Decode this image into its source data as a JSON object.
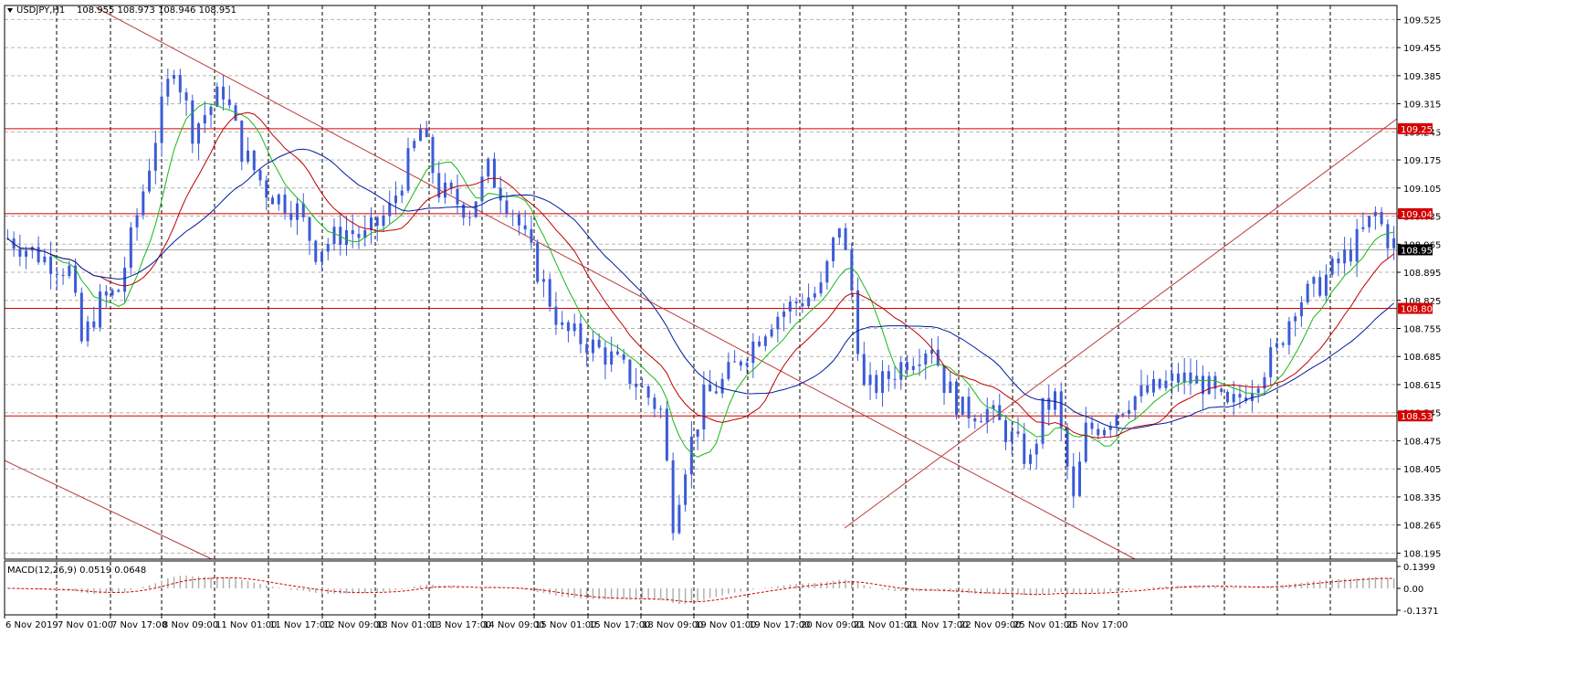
{
  "header": {
    "symbol": "USDJPY,H1",
    "ohlc": "108.955 108.973 108.946 108.951"
  },
  "macd_panel": {
    "label": "MACD(12,26,9) 0.0519 0.0648",
    "ticks": [
      "0.1399",
      "0.00",
      "-0.1371"
    ]
  },
  "colors": {
    "candle": "#3b5bd6",
    "ma_fast": "#18b818",
    "ma_mid": "#c00000",
    "ma_slow": "#001c9c",
    "hline": "#d40000",
    "trend": "#b83c3c",
    "grid": "#b4b4b4",
    "price_tag": "#000000"
  },
  "chart_data": {
    "type": "candlestick",
    "title": "USDJPY,H1",
    "ylim": [
      108.18,
      109.56
    ],
    "y_ticks": [
      "109.525",
      "109.455",
      "109.385",
      "109.315",
      "109.245",
      "109.175",
      "109.105",
      "109.035",
      "108.965",
      "108.895",
      "108.825",
      "108.755",
      "108.685",
      "108.615",
      "108.545",
      "108.475",
      "108.405",
      "108.335",
      "108.265",
      "108.195"
    ],
    "x_ticks": [
      "6 Nov 2019",
      "7 Nov 01:00",
      "7 Nov 17:00",
      "8 Nov 09:00",
      "11 Nov 01:00",
      "11 Nov 17:00",
      "12 Nov 09:00",
      "13 Nov 01:00",
      "13 Nov 17:00",
      "14 Nov 09:00",
      "15 Nov 01:00",
      "15 Nov 17:00",
      "18 Nov 09:00",
      "19 Nov 01:00",
      "19 Nov 17:00",
      "20 Nov 09:00",
      "21 Nov 01:00",
      "21 Nov 17:00",
      "22 Nov 09:00",
      "25 Nov 01:00",
      "25 Nov 17:00"
    ],
    "current_price": "108.951",
    "horizontal_levels": [
      "109.253",
      "109.041",
      "108.805",
      "108.537"
    ],
    "price_path": [
      [
        0,
        108.98
      ],
      [
        6,
        108.93
      ],
      [
        10,
        108.9
      ],
      [
        12,
        108.72
      ],
      [
        15,
        108.82
      ],
      [
        18,
        108.85
      ],
      [
        22,
        109.1
      ],
      [
        25,
        109.3
      ],
      [
        27,
        109.42
      ],
      [
        30,
        109.25
      ],
      [
        35,
        109.35
      ],
      [
        38,
        109.2
      ],
      [
        42,
        109.1
      ],
      [
        47,
        109.05
      ],
      [
        50,
        108.95
      ],
      [
        55,
        109.0
      ],
      [
        58,
        108.98
      ],
      [
        62,
        109.05
      ],
      [
        67,
        109.25
      ],
      [
        70,
        109.1
      ],
      [
        75,
        109.05
      ],
      [
        78,
        109.15
      ],
      [
        82,
        109.05
      ],
      [
        86,
        108.9
      ],
      [
        90,
        108.75
      ],
      [
        94,
        108.72
      ],
      [
        98,
        108.68
      ],
      [
        102,
        108.62
      ],
      [
        106,
        108.55
      ],
      [
        108,
        108.28
      ],
      [
        110,
        108.42
      ],
      [
        113,
        108.58
      ],
      [
        116,
        108.62
      ],
      [
        120,
        108.7
      ],
      [
        124,
        108.78
      ],
      [
        128,
        108.82
      ],
      [
        132,
        108.85
      ],
      [
        135,
        109.02
      ],
      [
        137,
        108.85
      ],
      [
        139,
        108.6
      ],
      [
        142,
        108.62
      ],
      [
        146,
        108.68
      ],
      [
        150,
        108.72
      ],
      [
        152,
        108.62
      ],
      [
        155,
        108.55
      ],
      [
        159,
        108.55
      ],
      [
        163,
        108.48
      ],
      [
        166,
        108.42
      ],
      [
        168,
        108.55
      ],
      [
        170,
        108.58
      ],
      [
        173,
        108.32
      ],
      [
        175,
        108.5
      ],
      [
        178,
        108.52
      ],
      [
        182,
        108.58
      ],
      [
        186,
        108.6
      ],
      [
        190,
        108.63
      ],
      [
        194,
        108.62
      ],
      [
        198,
        108.55
      ],
      [
        202,
        108.62
      ],
      [
        206,
        108.7
      ],
      [
        209,
        108.82
      ],
      [
        212,
        108.85
      ],
      [
        215,
        108.9
      ],
      [
        218,
        108.95
      ],
      [
        222,
        109.04
      ],
      [
        224,
        108.98
      ],
      [
        226,
        108.95
      ]
    ],
    "series": [
      {
        "values": [],
        "period": 8
      },
      {
        "values": [],
        "period": 16
      },
      {
        "values": [],
        "period": 28
      }
    ]
  }
}
